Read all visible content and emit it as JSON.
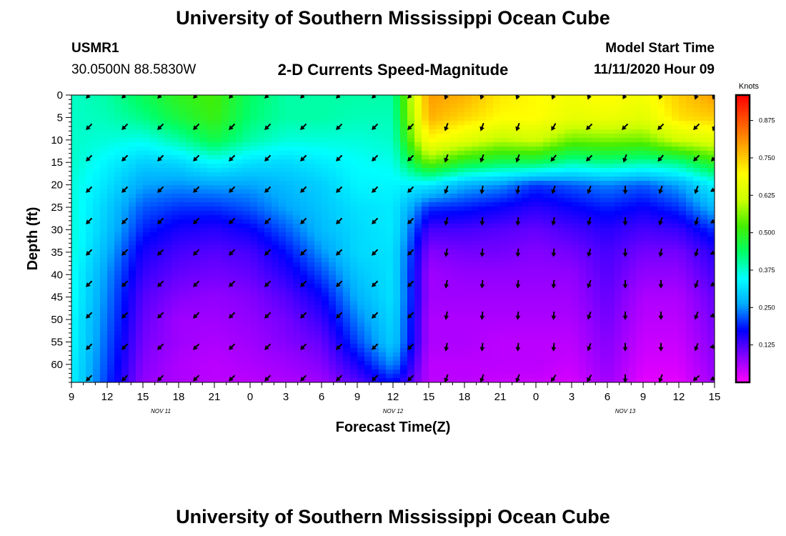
{
  "page": {
    "title_top": "University of Southern Mississippi Ocean Cube",
    "title_bottom": "University of Southern Mississippi Ocean Cube",
    "station_id": "USMR1",
    "station_coords": "30.0500N 88.5830W",
    "plot_title": "2-D Currents Speed-Magnitude",
    "model_start_label": "Model Start Time",
    "model_start_value": "11/11/2020 Hour 09"
  },
  "chart_data": {
    "type": "heatmap",
    "title": "2-D Currents Speed-Magnitude",
    "xlabel": "Forecast Time(Z)",
    "ylabel": "Depth (ft)",
    "x_tick_labels": [
      "9",
      "12",
      "15",
      "18",
      "21",
      "0",
      "3",
      "6",
      "9",
      "12",
      "15",
      "18",
      "21",
      "0",
      "3",
      "6",
      "9",
      "12",
      "15"
    ],
    "x_range_hours": [
      0,
      54
    ],
    "date_labels": [
      {
        "text": "NOV 11",
        "hour": 7.5
      },
      {
        "text": "NOV 12",
        "hour": 27
      },
      {
        "text": "NOV 13",
        "hour": 46.5
      }
    ],
    "y_ticks": [
      0,
      5,
      10,
      15,
      20,
      25,
      30,
      35,
      40,
      45,
      50,
      55,
      60
    ],
    "y_range": [
      0,
      64
    ],
    "colorbar": {
      "unit": "Knots",
      "range": [
        0.0,
        0.96
      ],
      "tick_labels": [
        "0.875",
        "0.750",
        "0.625",
        "0.500",
        "0.375",
        "0.250",
        "0.125"
      ],
      "tick_values": [
        0.875,
        0.75,
        0.625,
        0.5,
        0.375,
        0.25,
        0.125
      ],
      "colors": [
        "#ff00ff",
        "#8800ff",
        "#0000ff",
        "#00aaff",
        "#00ffff",
        "#00ff66",
        "#44ee00",
        "#ccff00",
        "#ffff00",
        "#ffaa00",
        "#ff5500",
        "#ff0000"
      ]
    },
    "time_hours": [
      0,
      3,
      6,
      9,
      12,
      15,
      18,
      21,
      24,
      27,
      30,
      33,
      36,
      39,
      42,
      45,
      48,
      51,
      54
    ],
    "depth_ft": [
      0,
      5,
      10,
      15,
      20,
      25,
      30,
      35,
      40,
      45,
      50,
      55,
      60,
      64
    ],
    "speed_knots": [
      [
        0.38,
        0.38,
        0.38,
        0.38,
        0.37,
        0.37,
        0.37,
        0.37,
        0.36,
        0.36,
        0.35,
        0.35,
        0.34,
        0.34
      ],
      [
        0.4,
        0.39,
        0.37,
        0.34,
        0.32,
        0.3,
        0.29,
        0.27,
        0.25,
        0.24,
        0.23,
        0.22,
        0.21,
        0.2
      ],
      [
        0.45,
        0.42,
        0.36,
        0.3,
        0.26,
        0.22,
        0.19,
        0.16,
        0.14,
        0.12,
        0.11,
        0.1,
        0.09,
        0.08
      ],
      [
        0.5,
        0.47,
        0.4,
        0.31,
        0.25,
        0.2,
        0.16,
        0.13,
        0.11,
        0.09,
        0.07,
        0.07,
        0.06,
        0.06
      ],
      [
        0.52,
        0.51,
        0.46,
        0.35,
        0.26,
        0.2,
        0.15,
        0.12,
        0.1,
        0.08,
        0.07,
        0.06,
        0.05,
        0.05
      ],
      [
        0.44,
        0.43,
        0.4,
        0.32,
        0.26,
        0.22,
        0.17,
        0.13,
        0.11,
        0.09,
        0.08,
        0.07,
        0.06,
        0.05
      ],
      [
        0.4,
        0.4,
        0.37,
        0.31,
        0.28,
        0.26,
        0.22,
        0.18,
        0.15,
        0.12,
        0.1,
        0.09,
        0.07,
        0.06
      ],
      [
        0.4,
        0.4,
        0.37,
        0.33,
        0.3,
        0.29,
        0.28,
        0.25,
        0.21,
        0.17,
        0.14,
        0.11,
        0.09,
        0.07
      ],
      [
        0.4,
        0.39,
        0.37,
        0.35,
        0.34,
        0.32,
        0.31,
        0.31,
        0.29,
        0.27,
        0.24,
        0.21,
        0.16,
        0.12
      ],
      [
        0.4,
        0.39,
        0.38,
        0.36,
        0.34,
        0.33,
        0.33,
        0.32,
        0.32,
        0.32,
        0.31,
        0.3,
        0.25,
        0.18
      ],
      [
        0.8,
        0.78,
        0.7,
        0.55,
        0.33,
        0.2,
        0.13,
        0.09,
        0.07,
        0.07,
        0.06,
        0.06,
        0.05,
        0.05
      ],
      [
        0.78,
        0.74,
        0.65,
        0.48,
        0.27,
        0.19,
        0.13,
        0.1,
        0.08,
        0.07,
        0.06,
        0.06,
        0.05,
        0.05
      ],
      [
        0.72,
        0.7,
        0.6,
        0.45,
        0.25,
        0.17,
        0.12,
        0.1,
        0.08,
        0.07,
        0.06,
        0.05,
        0.05,
        0.04
      ],
      [
        0.7,
        0.7,
        0.62,
        0.45,
        0.2,
        0.15,
        0.11,
        0.09,
        0.08,
        0.07,
        0.06,
        0.05,
        0.05,
        0.04
      ],
      [
        0.68,
        0.66,
        0.55,
        0.4,
        0.22,
        0.17,
        0.13,
        0.1,
        0.08,
        0.07,
        0.06,
        0.05,
        0.04,
        0.03
      ],
      [
        0.7,
        0.67,
        0.56,
        0.42,
        0.24,
        0.19,
        0.15,
        0.13,
        0.12,
        0.11,
        0.1,
        0.09,
        0.08,
        0.07
      ],
      [
        0.68,
        0.65,
        0.55,
        0.4,
        0.22,
        0.17,
        0.13,
        0.1,
        0.08,
        0.06,
        0.05,
        0.04,
        0.03,
        0.02
      ],
      [
        0.75,
        0.73,
        0.62,
        0.42,
        0.26,
        0.2,
        0.14,
        0.1,
        0.08,
        0.06,
        0.05,
        0.04,
        0.03,
        0.02
      ],
      [
        0.8,
        0.75,
        0.65,
        0.5,
        0.34,
        0.28,
        0.2,
        0.15,
        0.13,
        0.11,
        0.1,
        0.09,
        0.08,
        0.07
      ]
    ],
    "arrow_times": [
      1.5,
      4.5,
      7.5,
      10.5,
      13.5,
      16.5,
      19.5,
      22.5,
      25.5,
      28.5,
      31.5,
      34.5,
      37.5,
      40.5,
      43.5,
      46.5,
      49.5,
      52.5,
      54
    ],
    "arrow_depths": [
      0,
      7,
      14,
      21,
      28,
      35,
      42,
      49,
      56,
      63
    ],
    "arrow_dir_deg": [
      [
        225,
        225,
        225,
        225,
        225,
        225,
        225,
        225,
        225,
        225
      ],
      [
        225,
        225,
        225,
        225,
        225,
        225,
        225,
        225,
        225,
        225
      ],
      [
        225,
        225,
        225,
        225,
        225,
        225,
        225,
        225,
        225,
        225
      ],
      [
        225,
        225,
        225,
        225,
        225,
        225,
        225,
        225,
        225,
        225
      ],
      [
        225,
        225,
        225,
        225,
        225,
        225,
        225,
        225,
        225,
        225
      ],
      [
        225,
        225,
        225,
        225,
        225,
        225,
        225,
        225,
        225,
        225
      ],
      [
        225,
        225,
        225,
        225,
        225,
        225,
        225,
        225,
        225,
        225
      ],
      [
        225,
        225,
        225,
        225,
        225,
        225,
        225,
        225,
        225,
        225
      ],
      [
        225,
        225,
        225,
        225,
        225,
        225,
        225,
        225,
        225,
        225
      ],
      [
        225,
        225,
        225,
        225,
        225,
        225,
        225,
        225,
        225,
        225
      ],
      [
        200,
        200,
        200,
        200,
        195,
        190,
        190,
        190,
        190,
        200
      ],
      [
        200,
        200,
        200,
        190,
        185,
        185,
        185,
        185,
        185,
        200
      ],
      [
        200,
        200,
        200,
        190,
        185,
        185,
        185,
        185,
        185,
        200
      ],
      [
        200,
        210,
        220,
        200,
        190,
        185,
        185,
        185,
        185,
        215
      ],
      [
        200,
        225,
        225,
        200,
        195,
        195,
        200,
        200,
        200,
        210
      ],
      [
        210,
        225,
        200,
        180,
        180,
        180,
        180,
        180,
        180,
        180
      ],
      [
        200,
        225,
        220,
        200,
        200,
        190,
        180,
        180,
        180,
        200
      ],
      [
        200,
        225,
        225,
        200,
        195,
        195,
        200,
        200,
        200,
        230
      ],
      [
        200,
        200,
        225,
        240,
        240,
        240,
        240,
        250,
        260,
        240
      ]
    ]
  }
}
